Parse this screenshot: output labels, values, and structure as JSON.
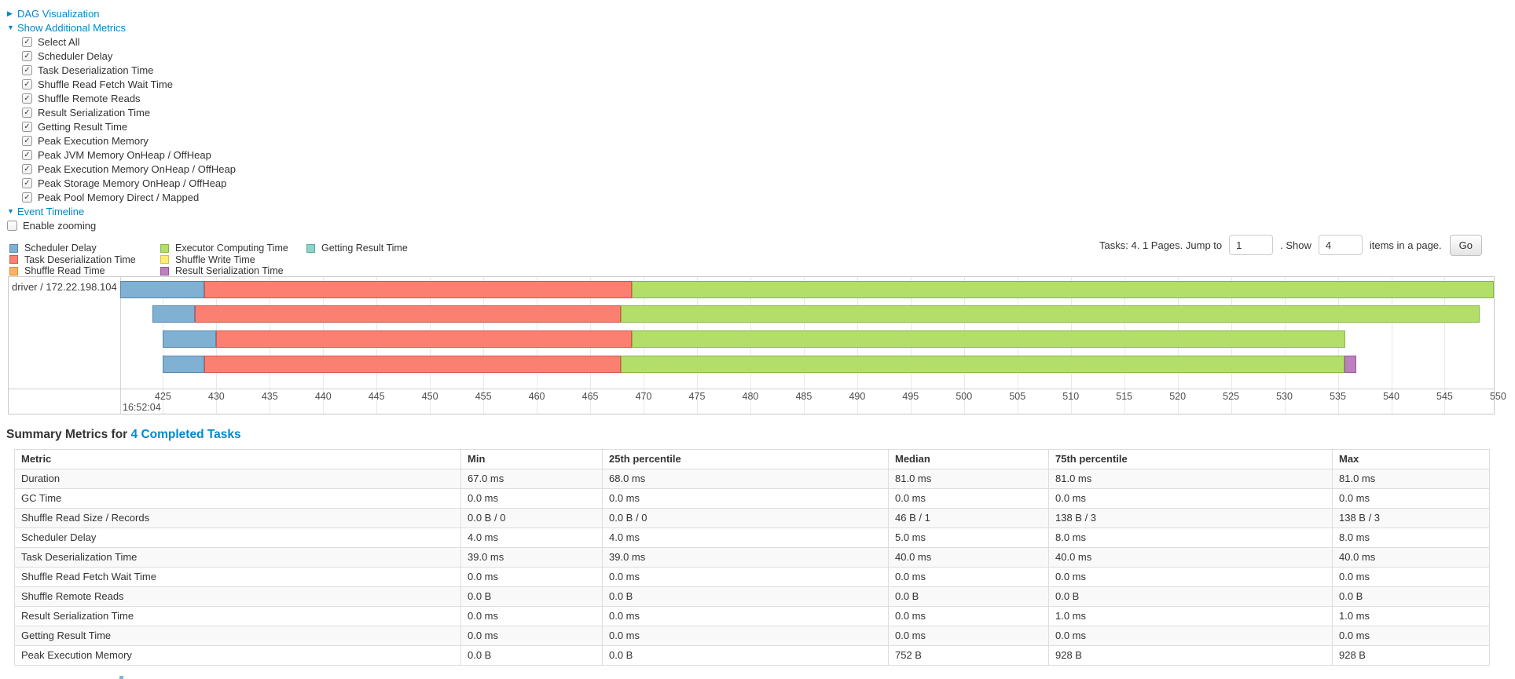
{
  "colors": {
    "link": "#0088cc",
    "text": "#333333",
    "table_border": "#dddddd",
    "table_stripe": "#f9f9f9",
    "gridline": "#e8e8e8",
    "chart_border": "#c8c8c8"
  },
  "sections": {
    "dag": {
      "label": "DAG Visualization",
      "state": "collapsed",
      "arrow": "▶"
    },
    "additional_metrics": {
      "label": "Show Additional Metrics",
      "state": "expanded",
      "arrow": "▼",
      "checkboxes": [
        {
          "label": "Select All",
          "checked": true
        },
        {
          "label": "Scheduler Delay",
          "checked": true
        },
        {
          "label": "Task Deserialization Time",
          "checked": true
        },
        {
          "label": "Shuffle Read Fetch Wait Time",
          "checked": true
        },
        {
          "label": "Shuffle Remote Reads",
          "checked": true
        },
        {
          "label": "Result Serialization Time",
          "checked": true
        },
        {
          "label": "Getting Result Time",
          "checked": true
        },
        {
          "label": "Peak Execution Memory",
          "checked": true
        },
        {
          "label": "Peak JVM Memory OnHeap / OffHeap",
          "checked": true
        },
        {
          "label": "Peak Execution Memory OnHeap / OffHeap",
          "checked": true
        },
        {
          "label": "Peak Storage Memory OnHeap / OffHeap",
          "checked": true
        },
        {
          "label": "Peak Pool Memory Direct / Mapped",
          "checked": true
        }
      ]
    },
    "event_timeline": {
      "label": "Event Timeline",
      "state": "expanded",
      "arrow": "▼"
    },
    "enable_zooming": {
      "label": "Enable zooming",
      "checked": false
    }
  },
  "legend": {
    "items": [
      {
        "key": "scheduler_delay",
        "label": "Scheduler Delay",
        "color": "#80B1D3",
        "border": "#5586ad",
        "col": 0
      },
      {
        "key": "task_deserialization_time",
        "label": "Task Deserialization Time",
        "color": "#FB8072",
        "border": "#d65548",
        "col": 0
      },
      {
        "key": "shuffle_read_time",
        "label": "Shuffle Read Time",
        "color": "#FDB462",
        "border": "#d98c32",
        "col": 0
      },
      {
        "key": "executor_computing_time",
        "label": "Executor Computing Time",
        "color": "#B3DE69",
        "border": "#87b741",
        "col": 1
      },
      {
        "key": "shuffle_write_time",
        "label": "Shuffle Write Time",
        "color": "#FFED6F",
        "border": "#d6c13c",
        "col": 1
      },
      {
        "key": "result_serialization_time",
        "label": "Result Serialization Time",
        "color": "#BC80BD",
        "border": "#95569a",
        "col": 1
      },
      {
        "key": "getting_result_time",
        "label": "Getting Result Time",
        "color": "#8DD3C7",
        "border": "#57ab9c",
        "col": 2
      }
    ]
  },
  "tasks_pager": {
    "text_before_jump": "Tasks: 4. 1 Pages. Jump to",
    "jump_value": "1",
    "text_between": ". Show",
    "show_value": "4",
    "text_after": "items in a page.",
    "go_label": "Go"
  },
  "chart_data": {
    "type": "timeline",
    "group_label": "driver / 172.22.198.104",
    "time_base_label": "16:52:04",
    "axis": {
      "min": 421.0,
      "max": 549.6,
      "tick_start": 425,
      "tick_end": 550,
      "tick_step": 5,
      "unit": "ms after 16:52:04"
    },
    "tasks": [
      {
        "segments": [
          {
            "type": "scheduler_delay",
            "start": 421.0,
            "end": 428.9
          },
          {
            "type": "task_deserialization_time",
            "start": 428.9,
            "end": 468.9
          },
          {
            "type": "executor_computing_time",
            "start": 468.9,
            "end": 549.6
          }
        ]
      },
      {
        "segments": [
          {
            "type": "scheduler_delay",
            "start": 424.0,
            "end": 428.0
          },
          {
            "type": "task_deserialization_time",
            "start": 428.0,
            "end": 467.9
          },
          {
            "type": "executor_computing_time",
            "start": 467.9,
            "end": 548.3
          }
        ]
      },
      {
        "segments": [
          {
            "type": "scheduler_delay",
            "start": 425.0,
            "end": 430.0
          },
          {
            "type": "task_deserialization_time",
            "start": 430.0,
            "end": 468.9
          },
          {
            "type": "executor_computing_time",
            "start": 468.9,
            "end": 535.7
          }
        ]
      },
      {
        "segments": [
          {
            "type": "scheduler_delay",
            "start": 425.0,
            "end": 428.9
          },
          {
            "type": "task_deserialization_time",
            "start": 428.9,
            "end": 467.9
          },
          {
            "type": "executor_computing_time",
            "start": 467.9,
            "end": 535.6
          },
          {
            "type": "result_serialization_time",
            "start": 535.6,
            "end": 536.7
          }
        ]
      }
    ]
  },
  "summary": {
    "heading_prefix": "Summary Metrics for",
    "heading_link": "4 Completed Tasks",
    "columns": [
      "Metric",
      "Min",
      "25th percentile",
      "Median",
      "75th percentile",
      "Max"
    ],
    "rows": [
      {
        "metric": "Duration",
        "values": [
          "67.0 ms",
          "68.0 ms",
          "81.0 ms",
          "81.0 ms",
          "81.0 ms"
        ]
      },
      {
        "metric": "GC Time",
        "values": [
          "0.0 ms",
          "0.0 ms",
          "0.0 ms",
          "0.0 ms",
          "0.0 ms"
        ]
      },
      {
        "metric": "Shuffle Read Size / Records",
        "values": [
          "0.0 B / 0",
          "0.0 B / 0",
          "46 B / 1",
          "138 B / 3",
          "138 B / 3"
        ]
      },
      {
        "metric": "Scheduler Delay",
        "values": [
          "4.0 ms",
          "4.0 ms",
          "5.0 ms",
          "8.0 ms",
          "8.0 ms"
        ]
      },
      {
        "metric": "Task Deserialization Time",
        "values": [
          "39.0 ms",
          "39.0 ms",
          "40.0 ms",
          "40.0 ms",
          "40.0 ms"
        ]
      },
      {
        "metric": "Shuffle Read Fetch Wait Time",
        "values": [
          "0.0 ms",
          "0.0 ms",
          "0.0 ms",
          "0.0 ms",
          "0.0 ms"
        ]
      },
      {
        "metric": "Shuffle Remote Reads",
        "values": [
          "0.0 B",
          "0.0 B",
          "0.0 B",
          "0.0 B",
          "0.0 B"
        ]
      },
      {
        "metric": "Result Serialization Time",
        "values": [
          "0.0 ms",
          "0.0 ms",
          "0.0 ms",
          "1.0 ms",
          "1.0 ms"
        ]
      },
      {
        "metric": "Getting Result Time",
        "values": [
          "0.0 ms",
          "0.0 ms",
          "0.0 ms",
          "0.0 ms",
          "0.0 ms"
        ]
      },
      {
        "metric": "Peak Execution Memory",
        "values": [
          "0.0 B",
          "0.0 B",
          "752 B",
          "928 B",
          "928 B"
        ]
      }
    ]
  }
}
